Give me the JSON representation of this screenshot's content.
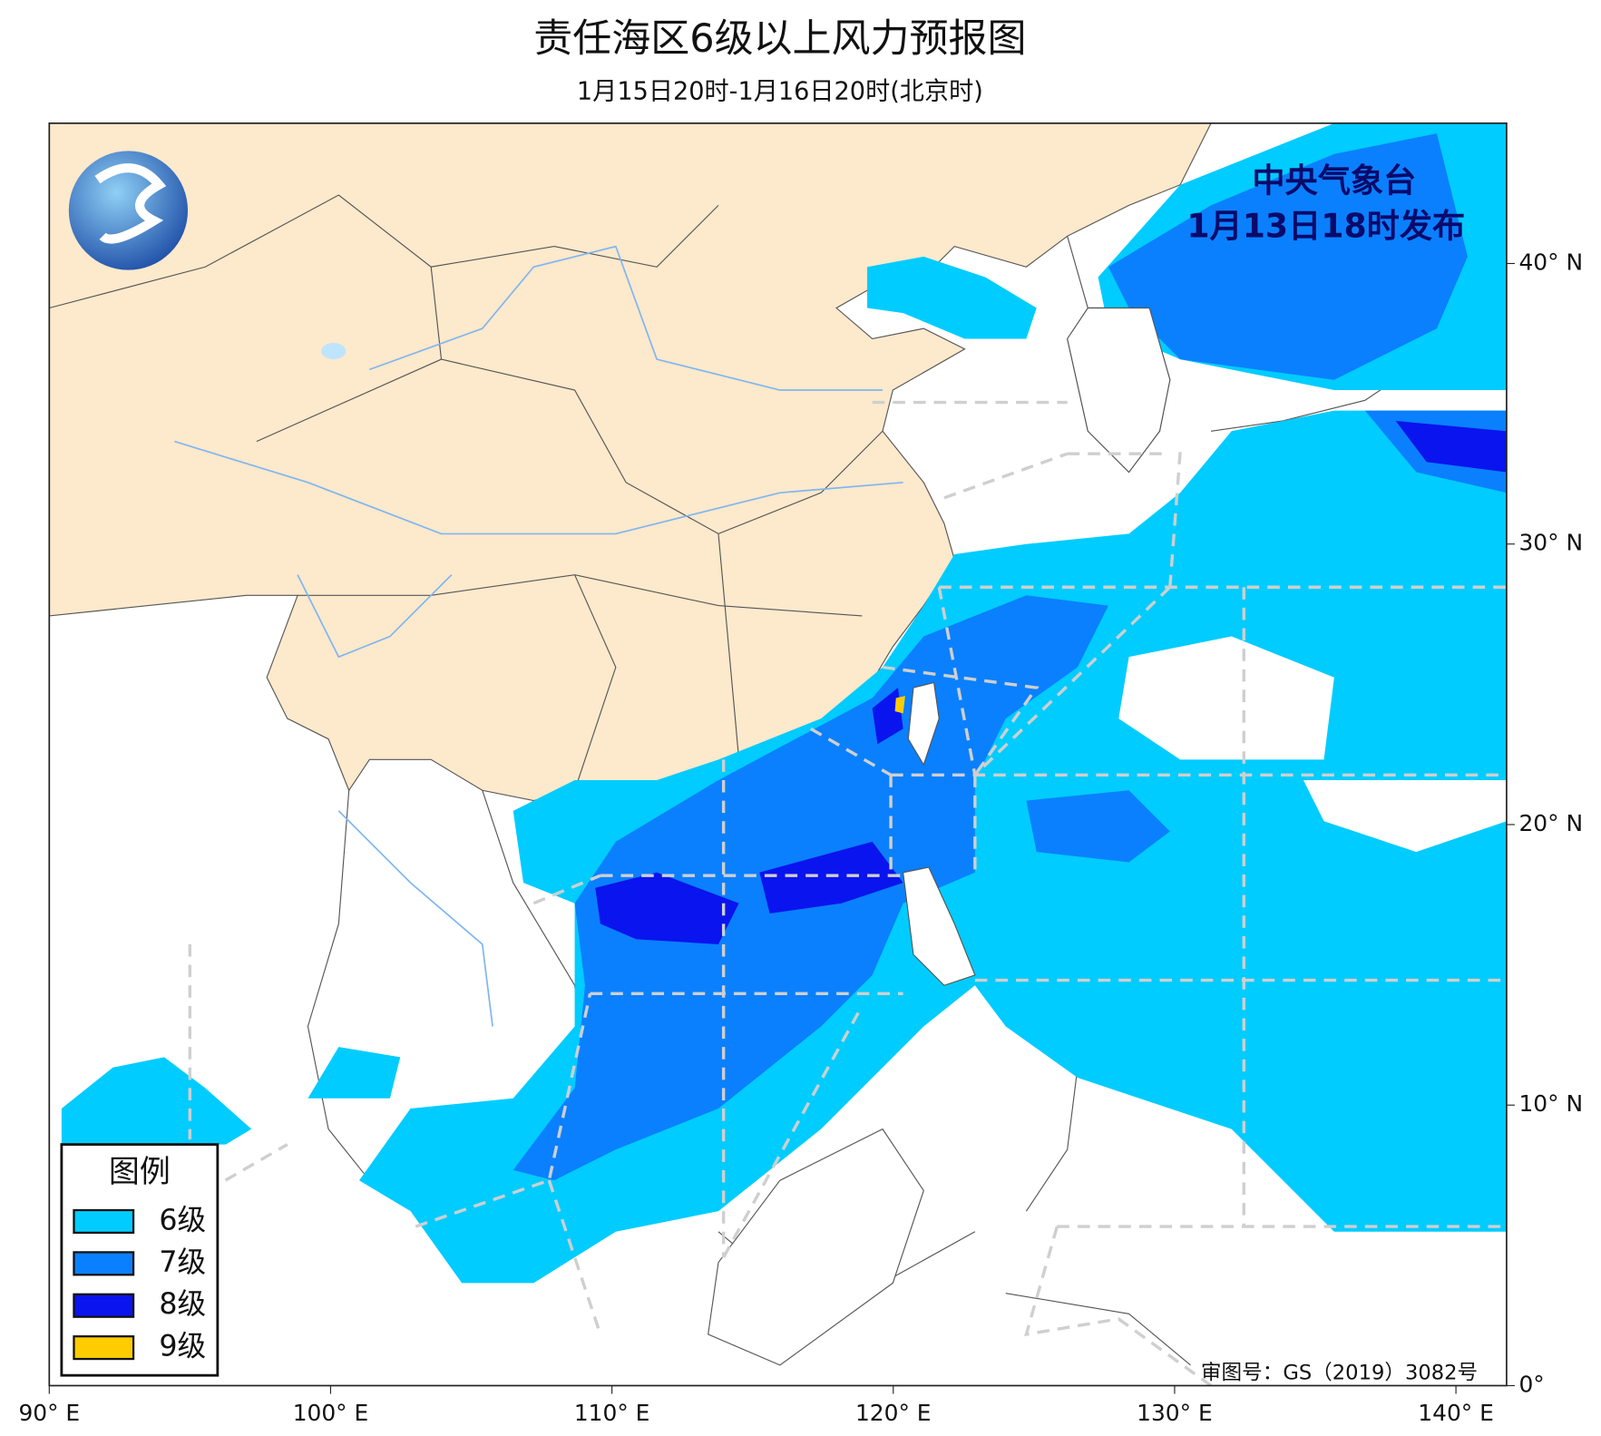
{
  "chart_data": {
    "type": "map",
    "title": "责任海区6级以上风力预报图",
    "subtitle": "1月15日20时-1月16日20时(北京时)",
    "issuer": "中央气象台",
    "issued": "1月13日18时发布",
    "review_number": "审图号：GS（2019）3082号",
    "xlim": [
      90,
      141.8
    ],
    "ylim": [
      0,
      45
    ],
    "xticks": [
      {
        "value": 90,
        "label": "90° E"
      },
      {
        "value": 100,
        "label": "100° E"
      },
      {
        "value": 110,
        "label": "110° E"
      },
      {
        "value": 120,
        "label": "120° E"
      },
      {
        "value": 130,
        "label": "130° E"
      },
      {
        "value": 140,
        "label": "140° E"
      }
    ],
    "yticks": [
      {
        "value": 0,
        "label": "0°"
      },
      {
        "value": 10,
        "label": "10° N"
      },
      {
        "value": 20,
        "label": "20° N"
      },
      {
        "value": 30,
        "label": "30° N"
      },
      {
        "value": 40,
        "label": "40° N"
      }
    ],
    "legend": {
      "title": "图例",
      "items": [
        {
          "label": "6级",
          "color": "#00ccff"
        },
        {
          "label": "7级",
          "color": "#0a80ff"
        },
        {
          "label": "8级",
          "color": "#0a14ee"
        },
        {
          "label": "9级",
          "color": "#ffcc00"
        }
      ]
    }
  }
}
